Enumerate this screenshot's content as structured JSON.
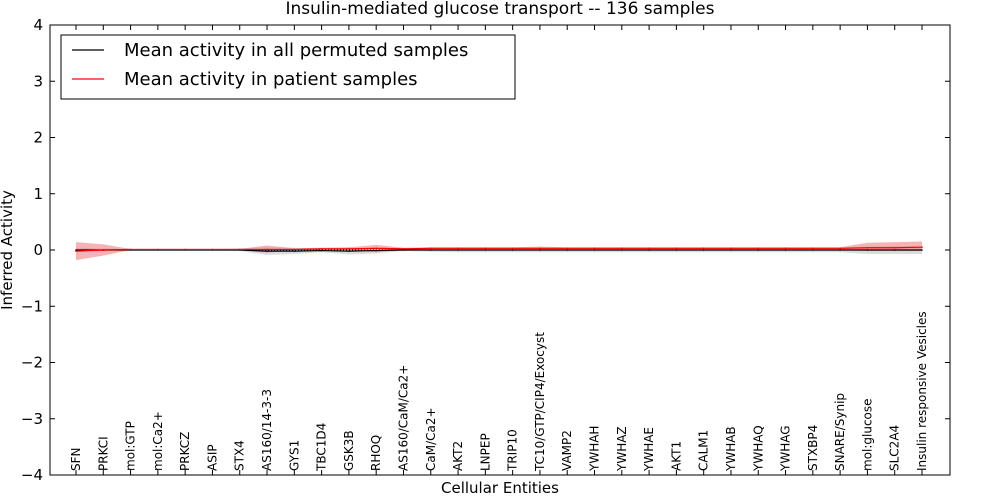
{
  "chart_data": {
    "type": "line",
    "title": "Insulin-mediated glucose transport -- 136 samples",
    "xlabel": "Cellular Entities",
    "ylabel": "Inferred Activity",
    "ylim": [
      -4,
      4
    ],
    "yticks": [
      -4,
      -3,
      -2,
      -1,
      0,
      1,
      2,
      3,
      4
    ],
    "ytick_labels": [
      "−4",
      "−3",
      "−2",
      "−1",
      "0",
      "1",
      "2",
      "3",
      "4"
    ],
    "legend_position": "top-left",
    "categories": [
      "SFN",
      "PRKCI",
      "mol:GTP",
      "mol:Ca2+",
      "PRKCZ",
      "ASIP",
      "STX4",
      "AS160/14-3-3",
      "GYS1",
      "TBC1D4",
      "GSK3B",
      "RHOQ",
      "AS160/CaM/Ca2+",
      "CaM/Ca2+",
      "AKT2",
      "LNPEP",
      "TRIP10",
      "TC10/GTP/CIP4/Exocyst",
      "VAMP2",
      "YWHAH",
      "YWHAZ",
      "YWHAE",
      "AKT1",
      "CALM1",
      "YWHAB",
      "YWHAQ",
      "YWHAG",
      "STXBP4",
      "SNARE/Synip",
      "mol:glucose",
      "SLC2A4",
      "Insulin responsive Vesicles"
    ],
    "series": [
      {
        "name": "Mean activity in all permuted samples",
        "color": "#000000",
        "band_color": "#bfbfbf",
        "values": [
          0.0,
          0.0,
          0.0,
          0.0,
          0.0,
          0.0,
          0.0,
          -0.02,
          -0.02,
          -0.01,
          -0.02,
          -0.01,
          0.0,
          0.0,
          0.0,
          0.0,
          0.0,
          0.0,
          0.0,
          0.0,
          0.0,
          0.0,
          0.0,
          0.0,
          0.0,
          0.0,
          0.0,
          0.0,
          0.0,
          0.0,
          0.0,
          0.0
        ],
        "lower": [
          -0.02,
          -0.02,
          -0.01,
          -0.01,
          -0.01,
          -0.01,
          -0.02,
          -0.09,
          -0.07,
          -0.04,
          -0.08,
          -0.06,
          -0.02,
          -0.03,
          -0.04,
          -0.04,
          -0.04,
          -0.04,
          -0.04,
          -0.04,
          -0.04,
          -0.04,
          -0.04,
          -0.04,
          -0.04,
          -0.04,
          -0.04,
          -0.04,
          -0.04,
          -0.07,
          -0.07,
          -0.07
        ],
        "upper": [
          0.04,
          0.03,
          0.02,
          0.02,
          0.02,
          0.02,
          0.03,
          0.05,
          0.04,
          0.03,
          0.04,
          0.04,
          0.03,
          0.04,
          0.04,
          0.04,
          0.04,
          0.04,
          0.04,
          0.04,
          0.04,
          0.04,
          0.04,
          0.04,
          0.04,
          0.04,
          0.04,
          0.04,
          0.04,
          0.06,
          0.07,
          0.07
        ]
      },
      {
        "name": "Mean activity in patient samples",
        "color": "#ff0000",
        "band_color": "#f08080",
        "values": [
          -0.02,
          0.0,
          0.01,
          0.01,
          0.01,
          0.01,
          0.01,
          0.01,
          0.01,
          0.02,
          0.02,
          0.03,
          0.02,
          0.03,
          0.03,
          0.03,
          0.03,
          0.03,
          0.03,
          0.03,
          0.03,
          0.03,
          0.03,
          0.03,
          0.03,
          0.03,
          0.03,
          0.03,
          0.03,
          0.04,
          0.04,
          0.05
        ],
        "lower": [
          -0.18,
          -0.1,
          0.0,
          0.0,
          0.0,
          0.0,
          0.0,
          -0.05,
          0.0,
          0.0,
          0.0,
          -0.04,
          0.0,
          0.0,
          0.0,
          0.0,
          0.0,
          0.0,
          0.0,
          0.0,
          0.0,
          0.0,
          0.0,
          0.0,
          0.0,
          0.0,
          0.0,
          0.0,
          0.0,
          -0.02,
          -0.02,
          -0.02
        ],
        "upper": [
          0.14,
          0.1,
          0.02,
          0.02,
          0.02,
          0.02,
          0.02,
          0.08,
          0.03,
          0.04,
          0.05,
          0.09,
          0.04,
          0.05,
          0.05,
          0.05,
          0.05,
          0.06,
          0.05,
          0.05,
          0.05,
          0.05,
          0.05,
          0.05,
          0.05,
          0.05,
          0.05,
          0.05,
          0.05,
          0.13,
          0.14,
          0.15
        ]
      }
    ]
  }
}
